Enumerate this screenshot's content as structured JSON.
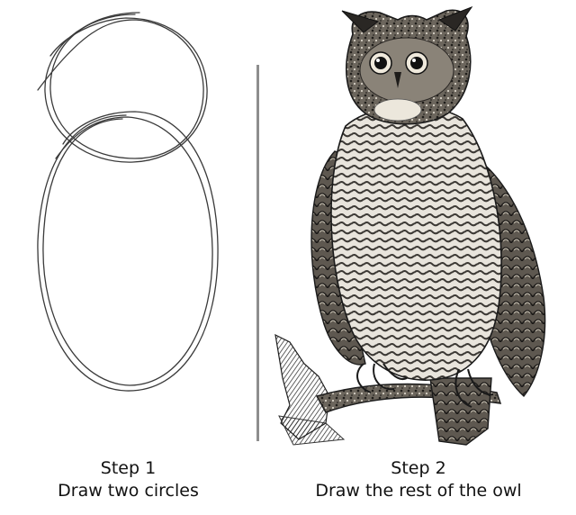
{
  "steps": [
    {
      "title": "Step 1",
      "caption": "Draw two circles"
    },
    {
      "title": "Step 2",
      "caption": "Draw the rest of the owl"
    }
  ],
  "colors": {
    "background": "#ffffff",
    "text": "#111111",
    "divider": "#8e8e8e",
    "sketch_line": "#3a3a3a"
  },
  "illustrations": {
    "left": "two-circles-sketch",
    "right": "engraved-owl-on-branch"
  }
}
